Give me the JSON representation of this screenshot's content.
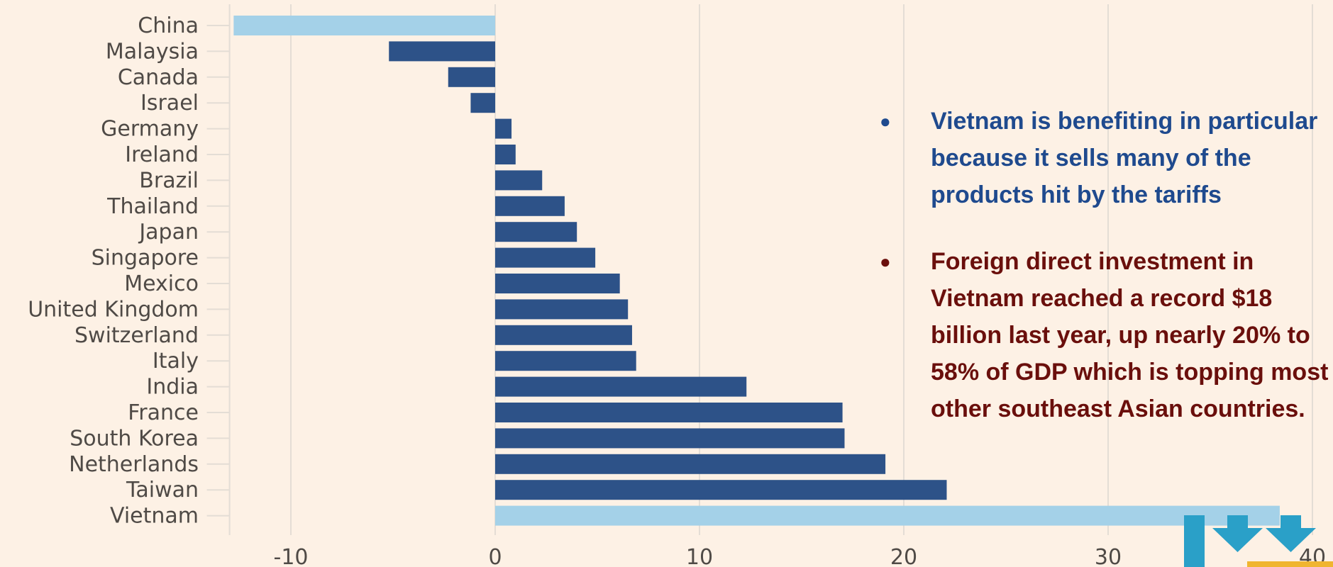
{
  "chart_data": {
    "type": "bar",
    "orientation": "horizontal",
    "categories": [
      "China",
      "Malaysia",
      "Canada",
      "Israel",
      "Germany",
      "Ireland",
      "Brazil",
      "Thailand",
      "Japan",
      "Singapore",
      "Mexico",
      "United Kingdom",
      "Switzerland",
      "Italy",
      "India",
      "France",
      "South Korea",
      "Netherlands",
      "Taiwan",
      "Vietnam"
    ],
    "values": [
      -12.8,
      -5.2,
      -2.3,
      -1.2,
      0.8,
      1.0,
      2.3,
      3.4,
      4.0,
      4.9,
      6.1,
      6.5,
      6.7,
      6.9,
      12.3,
      17.0,
      17.1,
      19.1,
      22.1,
      38.4
    ],
    "highlighted": [
      "China",
      "Vietnam"
    ],
    "x_ticks": [
      -10,
      0,
      10,
      20,
      30,
      40
    ],
    "x_tick_labels": [
      "-10",
      "0",
      "10",
      "20",
      "30",
      "40"
    ],
    "xlim": [
      -13,
      40
    ],
    "grid": true,
    "title": "",
    "xlabel": "",
    "ylabel": ""
  },
  "colors": {
    "background": "#fdf1e5",
    "bar": "#2d5288",
    "bar_highlight": "#a4d1e8",
    "grid": "#e4ddd5",
    "axis_text": "#4f4a46",
    "note1": "#1f4a8e",
    "note2": "#6a0f0c",
    "logo_blue": "#2aa0c8",
    "logo_gold": "#f0b530"
  },
  "notes": [
    {
      "bullet": "●",
      "text": "Vietnam is benefiting in particular because it sells many of the products hit by the tariffs"
    },
    {
      "bullet": "●",
      "text": "Foreign direct investment in Vietnam reached a record $18 billion last year, up nearly 20% to 58% of GDP which is topping most other southeast Asian countries."
    }
  ],
  "icons": {
    "logo": "down-arrows-logo"
  }
}
